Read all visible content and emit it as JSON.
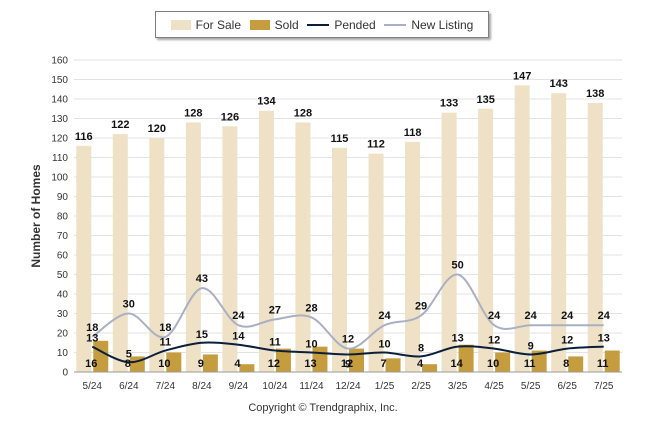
{
  "chart_data": {
    "type": "bar",
    "ylabel": "Number of Homes",
    "ylim": [
      0,
      160
    ],
    "y_ticks": [
      0,
      10,
      20,
      30,
      40,
      50,
      60,
      70,
      80,
      90,
      100,
      110,
      120,
      130,
      140,
      150,
      160
    ],
    "categories": [
      "5/24",
      "6/24",
      "7/24",
      "8/24",
      "9/24",
      "10/24",
      "11/24",
      "12/24",
      "1/25",
      "2/25",
      "3/25",
      "4/25",
      "5/25",
      "6/25",
      "7/25"
    ],
    "series": [
      {
        "name": "For Sale",
        "kind": "bar",
        "color": "#efe1c6",
        "values": [
          116,
          122,
          120,
          128,
          126,
          134,
          128,
          115,
          112,
          118,
          133,
          135,
          147,
          143,
          138
        ]
      },
      {
        "name": "Sold",
        "kind": "bar",
        "color": "#c59d3f",
        "values": [
          16,
          8,
          10,
          9,
          4,
          12,
          13,
          12,
          7,
          4,
          14,
          10,
          11,
          8,
          11
        ]
      },
      {
        "name": "Pended",
        "kind": "line",
        "color": "#0b1f3a",
        "values": [
          13,
          5,
          11,
          15,
          14,
          11,
          10,
          9,
          10,
          8,
          13,
          12,
          9,
          12,
          13
        ]
      },
      {
        "name": "New Listing",
        "kind": "line",
        "color": "#a9b0c4",
        "values": [
          18,
          30,
          18,
          43,
          24,
          27,
          28,
          12,
          24,
          29,
          50,
          24,
          24,
          24,
          24
        ]
      }
    ],
    "grid": true,
    "legend_position": "top"
  },
  "legend": [
    {
      "label": "For Sale",
      "kind": "rect",
      "color": "#efe1c6"
    },
    {
      "label": "Sold",
      "kind": "rect",
      "color": "#c59d3f"
    },
    {
      "label": "Pended",
      "kind": "line",
      "color": "#0b1f3a"
    },
    {
      "label": "New Listing",
      "kind": "line",
      "color": "#a9b0c4"
    }
  ],
  "footer": {
    "copyright": "Copyright © Trendgraphix, Inc."
  }
}
